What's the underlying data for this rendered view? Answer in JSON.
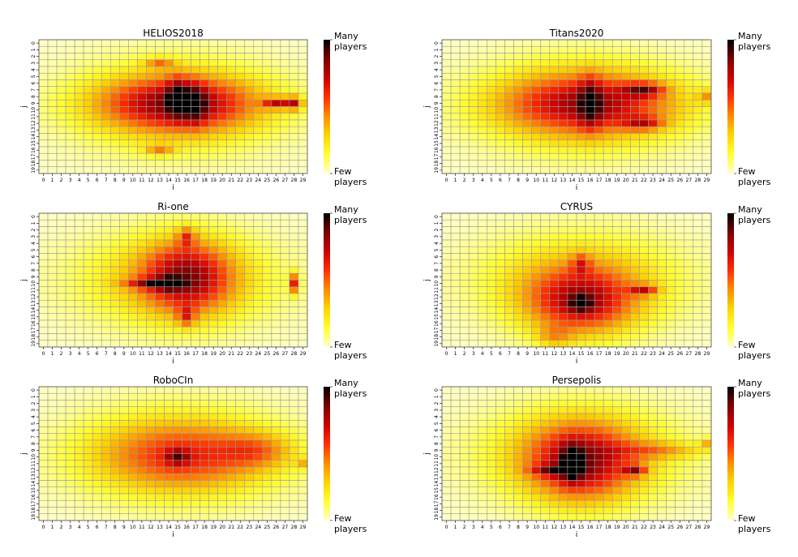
{
  "colorbar": {
    "top_label_line1": "Many",
    "top_label_line2": "players",
    "bottom_label_line1": "Few",
    "bottom_label_line2": "players",
    "colors": [
      "#ffffcc",
      "#ffff33",
      "#ffd400",
      "#ff8c00",
      "#ff3000",
      "#cc0000",
      "#7a0000",
      "#000000"
    ]
  },
  "grid": {
    "columns": 30,
    "rows": 20,
    "cell_border_color": "#9a9a9a"
  },
  "chart_data": [
    {
      "type": "heatmap",
      "title": "HELIOS2018",
      "xlabel": "i",
      "ylabel": "j",
      "x_ticks": [
        "0",
        "1",
        "2",
        "3",
        "4",
        "5",
        "6",
        "7",
        "8",
        "9",
        "10",
        "11",
        "12",
        "13",
        "14",
        "15",
        "16",
        "17",
        "18",
        "19",
        "20",
        "21",
        "22",
        "23",
        "24",
        "25",
        "26",
        "27",
        "28",
        "29"
      ],
      "y_ticks": [
        "0",
        "1",
        "2",
        "3",
        "4",
        "5",
        "6",
        "7",
        "8",
        "9",
        "10",
        "11",
        "12",
        "13",
        "14",
        "15",
        "16",
        "17",
        "18",
        "19"
      ],
      "hotspots": [
        {
          "i": 15,
          "j": 9,
          "v": 1.0,
          "sx": 9,
          "sy": 4
        },
        {
          "i": 28,
          "j": 9,
          "v": 0.95,
          "sx": 1,
          "sy": 1
        },
        {
          "i": 26,
          "j": 9,
          "v": 0.9,
          "sx": 1.5,
          "sy": 0.8
        },
        {
          "i": 15,
          "j": 8,
          "v": 0.6,
          "sx": 1.2,
          "sy": 3
        },
        {
          "i": 13,
          "j": 3,
          "v": 0.55,
          "sx": 1.6,
          "sy": 0.8
        },
        {
          "i": 13,
          "j": 16,
          "v": 0.55,
          "sx": 1.6,
          "sy": 0.8
        },
        {
          "i": 17,
          "j": 9,
          "v": 0.55,
          "sx": 1.2,
          "sy": 3
        }
      ]
    },
    {
      "type": "heatmap",
      "title": "Titans2020",
      "xlabel": "i",
      "ylabel": "j",
      "x_ticks": [
        "0",
        "1",
        "2",
        "3",
        "4",
        "5",
        "6",
        "7",
        "8",
        "9",
        "10",
        "11",
        "12",
        "13",
        "14",
        "15",
        "16",
        "17",
        "18",
        "19",
        "20",
        "21",
        "22",
        "23",
        "24",
        "25",
        "26",
        "27",
        "28",
        "29"
      ],
      "y_ticks": [
        "0",
        "1",
        "2",
        "3",
        "4",
        "5",
        "6",
        "7",
        "8",
        "9",
        "10",
        "11",
        "12",
        "13",
        "14",
        "15",
        "16",
        "17",
        "18",
        "19"
      ],
      "hotspots": [
        {
          "i": 16,
          "j": 9,
          "v": 0.9,
          "sx": 10,
          "sy": 4.5
        },
        {
          "i": 22,
          "j": 7,
          "v": 0.8,
          "sx": 2.2,
          "sy": 1
        },
        {
          "i": 22,
          "j": 12,
          "v": 0.65,
          "sx": 2.2,
          "sy": 1
        },
        {
          "i": 16,
          "j": 9,
          "v": 0.55,
          "sx": 1.2,
          "sy": 4
        },
        {
          "i": 29,
          "j": 8,
          "v": 0.5,
          "sx": 1,
          "sy": 1
        }
      ]
    },
    {
      "type": "heatmap",
      "title": "Ri-one",
      "xlabel": "i",
      "ylabel": "j",
      "x_ticks": [
        "0",
        "1",
        "2",
        "3",
        "4",
        "5",
        "6",
        "7",
        "8",
        "9",
        "10",
        "11",
        "12",
        "13",
        "14",
        "15",
        "16",
        "17",
        "18",
        "19",
        "20",
        "21",
        "22",
        "23",
        "24",
        "25",
        "26",
        "27",
        "28",
        "29"
      ],
      "y_ticks": [
        "0",
        "1",
        "2",
        "3",
        "4",
        "5",
        "6",
        "7",
        "8",
        "9",
        "10",
        "11",
        "12",
        "13",
        "14",
        "15",
        "16",
        "17",
        "18",
        "19"
      ],
      "hotspots": [
        {
          "i": 16,
          "j": 9,
          "v": 1.0,
          "sx": 5,
          "sy": 5.5
        },
        {
          "i": 14,
          "j": 10,
          "v": 0.9,
          "sx": 1.2,
          "sy": 0.8
        },
        {
          "i": 28,
          "j": 10,
          "v": 1.0,
          "sx": 0.6,
          "sy": 1.5
        },
        {
          "i": 12,
          "j": 10,
          "v": 0.7,
          "sx": 3,
          "sy": 0.8
        },
        {
          "i": 16,
          "j": 3,
          "v": 0.6,
          "sx": 1,
          "sy": 1.5
        },
        {
          "i": 16,
          "j": 15,
          "v": 0.6,
          "sx": 1,
          "sy": 1.5
        }
      ]
    },
    {
      "type": "heatmap",
      "title": "CYRUS",
      "xlabel": "i",
      "ylabel": "j",
      "x_ticks": [
        "0",
        "1",
        "2",
        "3",
        "4",
        "5",
        "6",
        "7",
        "8",
        "9",
        "10",
        "11",
        "12",
        "13",
        "14",
        "15",
        "16",
        "17",
        "18",
        "19",
        "20",
        "21",
        "22",
        "23",
        "24",
        "25",
        "26",
        "27",
        "28",
        "29"
      ],
      "y_ticks": [
        "0",
        "1",
        "2",
        "3",
        "4",
        "5",
        "6",
        "7",
        "8",
        "9",
        "10",
        "11",
        "12",
        "13",
        "14",
        "15",
        "16",
        "17",
        "18",
        "19"
      ],
      "hotspots": [
        {
          "i": 15,
          "j": 13,
          "v": 1.0,
          "sx": 6,
          "sy": 5
        },
        {
          "i": 15,
          "j": 13,
          "v": 0.6,
          "sx": 1.2,
          "sy": 1.2
        },
        {
          "i": 22,
          "j": 11,
          "v": 0.75,
          "sx": 1.6,
          "sy": 0.8
        },
        {
          "i": 15,
          "j": 7,
          "v": 0.5,
          "sx": 1,
          "sy": 1.5
        },
        {
          "i": 12,
          "j": 18,
          "v": 0.4,
          "sx": 2,
          "sy": 1.6
        }
      ]
    },
    {
      "type": "heatmap",
      "title": "RoboCIn",
      "xlabel": "i",
      "ylabel": "j",
      "x_ticks": [
        "0",
        "1",
        "2",
        "3",
        "4",
        "5",
        "6",
        "7",
        "8",
        "9",
        "10",
        "11",
        "12",
        "13",
        "14",
        "15",
        "16",
        "17",
        "18",
        "19",
        "20",
        "21",
        "22",
        "23",
        "24",
        "25",
        "26",
        "27",
        "28",
        "29"
      ],
      "y_ticks": [
        "0",
        "1",
        "2",
        "3",
        "4",
        "5",
        "6",
        "7",
        "8",
        "9",
        "10",
        "11",
        "12",
        "13",
        "14",
        "15",
        "16",
        "17",
        "18",
        "19"
      ],
      "hotspots": [
        {
          "i": 16,
          "j": 10,
          "v": 0.55,
          "sx": 10,
          "sy": 5
        },
        {
          "i": 15,
          "j": 10,
          "v": 0.55,
          "sx": 1.3,
          "sy": 1.2
        },
        {
          "i": 24,
          "j": 9,
          "v": 0.45,
          "sx": 4,
          "sy": 2.5
        },
        {
          "i": 29,
          "j": 11,
          "v": 0.4,
          "sx": 0.8,
          "sy": 0.8
        }
      ]
    },
    {
      "type": "heatmap",
      "title": "Persepolis",
      "xlabel": "i",
      "ylabel": "j",
      "x_ticks": [
        "0",
        "1",
        "2",
        "3",
        "4",
        "5",
        "6",
        "7",
        "8",
        "9",
        "10",
        "11",
        "12",
        "13",
        "14",
        "15",
        "16",
        "17",
        "18",
        "19",
        "20",
        "21",
        "22",
        "23",
        "24",
        "25",
        "26",
        "27",
        "28",
        "29"
      ],
      "y_ticks": [
        "0",
        "1",
        "2",
        "3",
        "4",
        "5",
        "6",
        "7",
        "8",
        "9",
        "10",
        "11",
        "12",
        "13",
        "14",
        "15",
        "16",
        "17",
        "18",
        "19"
      ],
      "hotspots": [
        {
          "i": 15,
          "j": 11,
          "v": 1.0,
          "sx": 6,
          "sy": 6
        },
        {
          "i": 14,
          "j": 11,
          "v": 0.8,
          "sx": 1.2,
          "sy": 2.5
        },
        {
          "i": 21,
          "j": 12,
          "v": 0.8,
          "sx": 1.2,
          "sy": 0.8
        },
        {
          "i": 12,
          "j": 12,
          "v": 0.6,
          "sx": 2.5,
          "sy": 0.8
        },
        {
          "i": 24,
          "j": 9,
          "v": 0.45,
          "sx": 5,
          "sy": 1.2
        },
        {
          "i": 29,
          "j": 8,
          "v": 0.45,
          "sx": 0.8,
          "sy": 0.8
        }
      ]
    }
  ]
}
